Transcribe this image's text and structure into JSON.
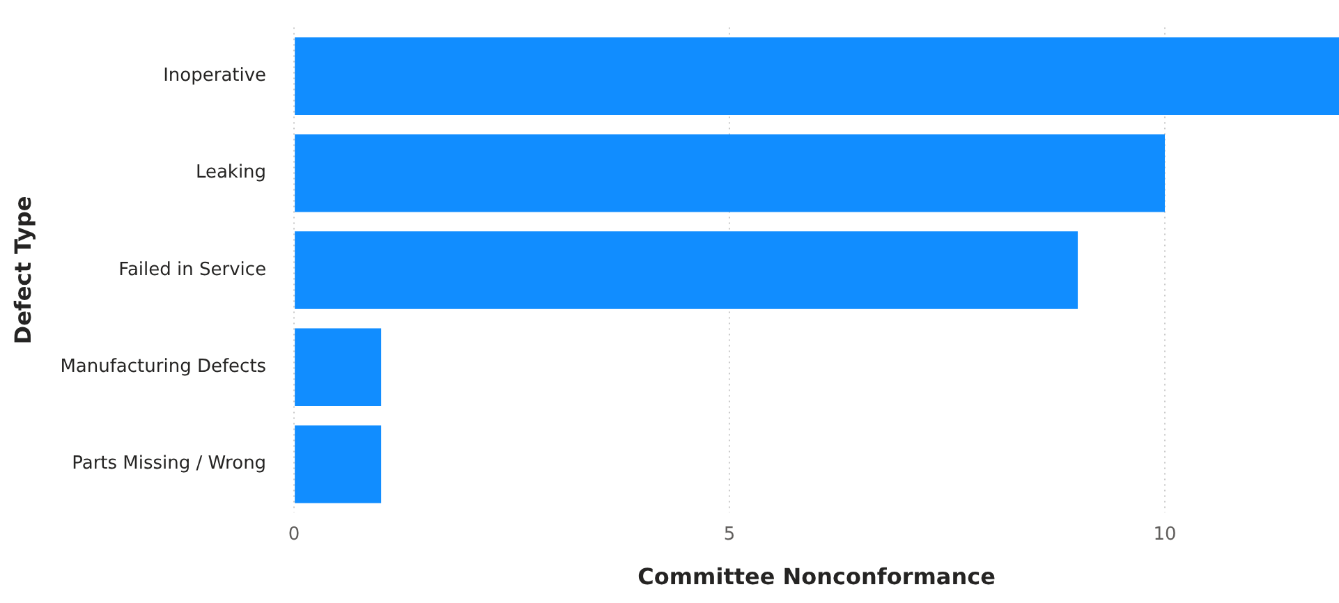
{
  "chart_data": {
    "type": "bar",
    "orientation": "horizontal",
    "xlabel": "Committee Nonconformance",
    "ylabel": "Defect Type",
    "categories": [
      "Inoperative",
      "Leaking",
      "Failed in Service",
      "Manufacturing Defects",
      "Parts Missing / Wrong"
    ],
    "values": [
      12,
      10,
      9,
      1,
      1
    ],
    "color": "#118dff",
    "xlim": [
      0,
      12
    ],
    "xticks": [
      0,
      5,
      10
    ],
    "grid": "x"
  }
}
